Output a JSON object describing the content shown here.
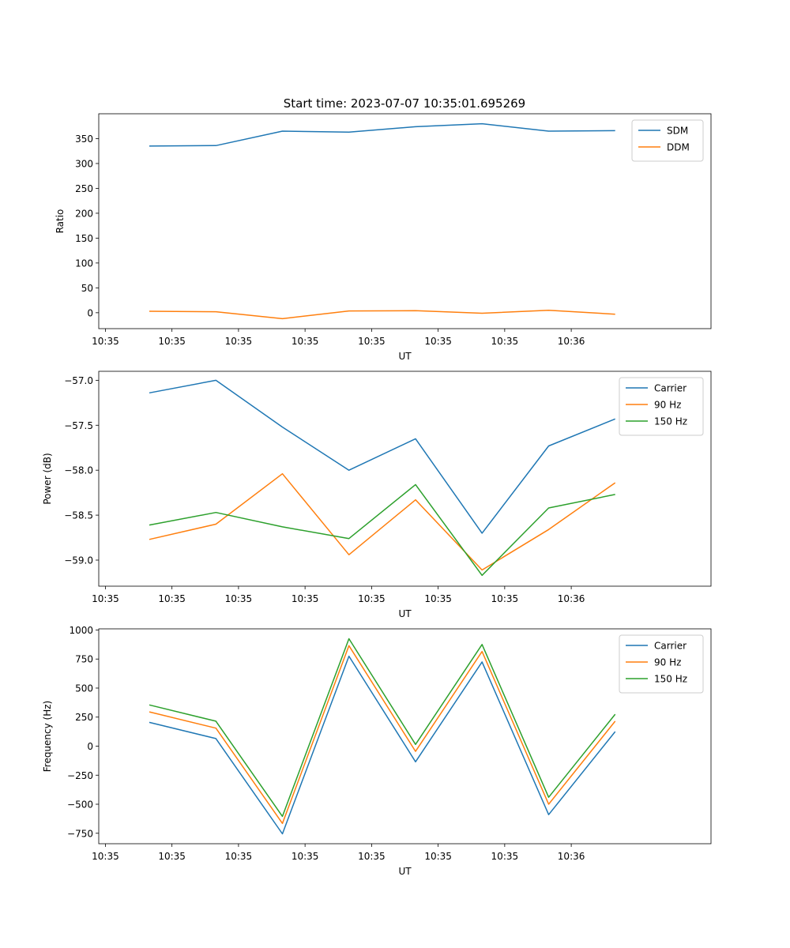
{
  "figure": {
    "title": "Start time: 2023-07-07 10:35:01.695269"
  },
  "chart_data": [
    {
      "type": "line",
      "title": "Start time: 2023-07-07 10:35:01.695269",
      "xlabel": "UT",
      "ylabel": "Ratio",
      "x_ticks": [
        "10:35",
        "10:35",
        "10:35",
        "10:35",
        "10:35",
        "10:35",
        "10:35",
        "10:36"
      ],
      "y_ticks": [
        0,
        50,
        100,
        150,
        200,
        250,
        300,
        350
      ],
      "y_tick_labels": [
        "0",
        "50",
        "100",
        "150",
        "200",
        "250",
        "300",
        "350"
      ],
      "ylim": [
        -32,
        400
      ],
      "xlim": [
        -0.1,
        9.1
      ],
      "legend": "top-right",
      "series": [
        {
          "name": "SDM",
          "color": "#1f77b4",
          "x": [
            0.66,
            1.66,
            2.66,
            3.66,
            4.66,
            5.66,
            6.66,
            7.66
          ],
          "values": [
            335,
            336,
            365,
            363,
            374,
            380,
            365,
            366
          ]
        },
        {
          "name": "DDM",
          "color": "#ff7f0e",
          "x": [
            0.66,
            1.66,
            2.66,
            3.66,
            4.66,
            5.66,
            6.66,
            7.66
          ],
          "values": [
            3,
            2,
            -12,
            3.5,
            4,
            -1,
            5,
            -3
          ]
        }
      ]
    },
    {
      "type": "line",
      "title": "",
      "xlabel": "UT",
      "ylabel": "Power (dB)",
      "x_ticks": [
        "10:35",
        "10:35",
        "10:35",
        "10:35",
        "10:35",
        "10:35",
        "10:35",
        "10:36"
      ],
      "y_ticks": [
        -57.0,
        -57.5,
        -58.0,
        -58.5,
        -59.0
      ],
      "y_tick_labels": [
        "−57.0",
        "−57.5",
        "−58.0",
        "−58.5",
        "−59.0"
      ],
      "ylim": [
        -59.29,
        -56.9
      ],
      "xlim": [
        -0.1,
        9.1
      ],
      "legend": "top-right",
      "series": [
        {
          "name": "Carrier",
          "color": "#1f77b4",
          "x": [
            0.66,
            1.66,
            2.66,
            3.66,
            4.66,
            5.66,
            6.66,
            7.66
          ],
          "values": [
            -57.14,
            -57.0,
            -57.52,
            -58.0,
            -57.65,
            -58.7,
            -57.73,
            -57.43
          ]
        },
        {
          "name": "90 Hz",
          "color": "#ff7f0e",
          "x": [
            0.66,
            1.66,
            2.66,
            3.66,
            4.66,
            5.66,
            6.66,
            7.66
          ],
          "values": [
            -58.77,
            -58.6,
            -58.04,
            -58.94,
            -58.33,
            -59.11,
            -58.66,
            -58.14
          ]
        },
        {
          "name": "150 Hz",
          "color": "#2ca02c",
          "x": [
            0.66,
            1.66,
            2.66,
            3.66,
            4.66,
            5.66,
            6.66,
            7.66
          ],
          "values": [
            -58.61,
            -58.47,
            -58.63,
            -58.76,
            -58.16,
            -59.17,
            -58.42,
            -58.27
          ]
        }
      ]
    },
    {
      "type": "line",
      "title": "",
      "xlabel": "UT",
      "ylabel": "Frequency (Hz)",
      "x_ticks": [
        "10:35",
        "10:35",
        "10:35",
        "10:35",
        "10:35",
        "10:35",
        "10:35",
        "10:36"
      ],
      "y_ticks": [
        1000,
        750,
        500,
        250,
        0,
        -250,
        -500,
        -750
      ],
      "y_tick_labels": [
        "1000",
        "750",
        "500",
        "250",
        "0",
        "−250",
        "−500",
        "−750"
      ],
      "ylim": [
        -840,
        1010
      ],
      "xlim": [
        -0.1,
        9.1
      ],
      "legend": "top-right",
      "series": [
        {
          "name": "Carrier",
          "color": "#1f77b4",
          "x": [
            0.66,
            1.66,
            2.66,
            3.66,
            4.66,
            5.66,
            6.66,
            7.66
          ],
          "values": [
            205,
            65,
            -755,
            775,
            -135,
            725,
            -590,
            125
          ]
        },
        {
          "name": "90 Hz",
          "color": "#ff7f0e",
          "x": [
            0.66,
            1.66,
            2.66,
            3.66,
            4.66,
            5.66,
            6.66,
            7.66
          ],
          "values": [
            295,
            155,
            -665,
            865,
            -45,
            815,
            -500,
            215
          ]
        },
        {
          "name": "150 Hz",
          "color": "#2ca02c",
          "x": [
            0.66,
            1.66,
            2.66,
            3.66,
            4.66,
            5.66,
            6.66,
            7.66
          ],
          "values": [
            355,
            215,
            -605,
            925,
            15,
            875,
            -440,
            275
          ]
        }
      ]
    }
  ]
}
